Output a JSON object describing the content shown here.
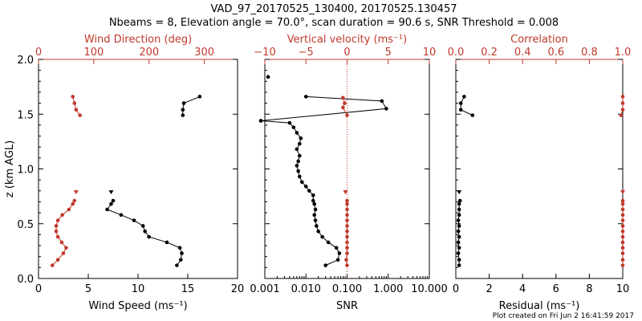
{
  "figure": {
    "title_line1": "VAD_97_20170525_130400, 20170525.130457",
    "title_line2": "Nbeams = 8, Elevation angle = 70.0°, scan duration = 90.6 s, SNR Threshold = 0.008",
    "footer": "Plot created on Fri Jun  2 16:41:59 2017",
    "colors": {
      "primary": "#000000",
      "secondary": "#c0392b"
    }
  },
  "chart_data": [
    {
      "type": "line",
      "panel": "left",
      "xlabel": "Wind Speed (ms⁻¹)",
      "ylabel": "z (km AGL)",
      "xlim": [
        0,
        20
      ],
      "ylim": [
        0,
        2
      ],
      "x_ticks": [
        "0",
        "5",
        "10",
        "15",
        "20"
      ],
      "y_ticks": [
        "0.0",
        "0.5",
        "1.0",
        "1.5",
        "2.0"
      ],
      "top_axis": {
        "label": "Wind Direction (deg)",
        "lim": [
          0,
          360
        ],
        "ticks": [
          "0",
          "100",
          "200",
          "300"
        ]
      },
      "series": [
        {
          "name": "Wind Speed",
          "color": "#000000",
          "axis": "bottom",
          "points": [
            [
              13.9,
              0.12
            ],
            [
              14.3,
              0.17
            ],
            [
              14.4,
              0.23
            ],
            [
              14.2,
              0.28
            ],
            [
              12.9,
              0.33
            ],
            [
              11.1,
              0.38
            ],
            [
              10.7,
              0.43
            ],
            [
              10.5,
              0.48
            ],
            [
              9.6,
              0.53
            ],
            [
              8.3,
              0.58
            ],
            [
              6.9,
              0.63
            ],
            [
              7.3,
              0.68
            ],
            [
              7.5,
              0.71
            ]
          ]
        },
        {
          "name": "Wind Speed",
          "color": "#000000",
          "axis": "bottom",
          "marker": "triangle",
          "points": [
            [
              7.3,
              0.79
            ]
          ]
        },
        {
          "name": "Wind Speed",
          "color": "#000000",
          "axis": "bottom",
          "points": [
            [
              14.5,
              1.49
            ],
            [
              14.5,
              1.54
            ],
            [
              14.6,
              1.6
            ],
            [
              16.2,
              1.66
            ]
          ]
        },
        {
          "name": "Wind Direction",
          "color": "#c0392b",
          "axis": "top",
          "points": [
            [
              25,
              0.12
            ],
            [
              35,
              0.17
            ],
            [
              45,
              0.23
            ],
            [
              50,
              0.28
            ],
            [
              42,
              0.33
            ],
            [
              35,
              0.38
            ],
            [
              32,
              0.43
            ],
            [
              32,
              0.48
            ],
            [
              35,
              0.53
            ],
            [
              43,
              0.58
            ],
            [
              55,
              0.63
            ],
            [
              62,
              0.68
            ],
            [
              65,
              0.71
            ]
          ]
        },
        {
          "name": "Wind Direction",
          "color": "#c0392b",
          "axis": "top",
          "marker": "triangle",
          "points": [
            [
              68,
              0.79
            ]
          ]
        },
        {
          "name": "Wind Direction",
          "color": "#c0392b",
          "axis": "top",
          "points": [
            [
              75,
              1.49
            ],
            [
              68,
              1.54
            ],
            [
              65,
              1.6
            ],
            [
              62,
              1.66
            ]
          ]
        }
      ]
    },
    {
      "type": "line",
      "panel": "middle",
      "xlabel": "SNR",
      "xscale": "log",
      "xlim": [
        0.001,
        10
      ],
      "ylim": [
        0,
        2
      ],
      "x_ticks": [
        "0.001",
        "0.010",
        "0.100",
        "1.000",
        "10.000"
      ],
      "top_axis": {
        "label": "Vertical velocity (ms⁻¹)",
        "lim": [
          -10,
          10
        ],
        "ticks": [
          "−10",
          "−5",
          "0",
          "5",
          "10"
        ]
      },
      "zero_line": {
        "axis": "top",
        "value": 0
      },
      "series": [
        {
          "name": "SNR",
          "color": "#000000",
          "axis": "bottom",
          "points": [
            [
              0.03,
              0.12
            ],
            [
              0.06,
              0.17
            ],
            [
              0.065,
              0.23
            ],
            [
              0.055,
              0.28
            ],
            [
              0.035,
              0.33
            ],
            [
              0.025,
              0.38
            ],
            [
              0.02,
              0.43
            ],
            [
              0.018,
              0.48
            ],
            [
              0.017,
              0.53
            ],
            [
              0.016,
              0.58
            ],
            [
              0.017,
              0.63
            ],
            [
              0.016,
              0.68
            ],
            [
              0.015,
              0.71
            ],
            [
              0.015,
              0.76
            ],
            [
              0.012,
              0.8
            ],
            [
              0.01,
              0.84
            ],
            [
              0.008,
              0.88
            ],
            [
              0.007,
              0.93
            ],
            [
              0.0065,
              0.98
            ],
            [
              0.006,
              1.03
            ],
            [
              0.0065,
              1.07
            ],
            [
              0.007,
              1.12
            ],
            [
              0.006,
              1.18
            ],
            [
              0.007,
              1.23
            ],
            [
              0.0075,
              1.28
            ],
            [
              0.006,
              1.33
            ],
            [
              0.005,
              1.38
            ],
            [
              0.004,
              1.42
            ],
            [
              0.0008,
              1.44
            ],
            [
              0.9,
              1.55
            ],
            [
              0.7,
              1.62
            ],
            [
              0.01,
              1.66
            ]
          ]
        },
        {
          "name": "SNR",
          "color": "#000000",
          "axis": "bottom",
          "points": [
            [
              0.0012,
              1.84
            ]
          ]
        },
        {
          "name": "Vertical velocity",
          "color": "#c0392b",
          "axis": "top",
          "points": [
            [
              0,
              0.12
            ],
            [
              -0.1,
              0.17
            ],
            [
              0,
              0.23
            ],
            [
              0,
              0.28
            ],
            [
              0,
              0.33
            ],
            [
              0,
              0.38
            ],
            [
              0,
              0.43
            ],
            [
              0,
              0.48
            ],
            [
              0,
              0.53
            ],
            [
              0,
              0.58
            ],
            [
              0,
              0.63
            ],
            [
              0,
              0.68
            ],
            [
              0,
              0.71
            ]
          ]
        },
        {
          "name": "Vertical velocity",
          "color": "#c0392b",
          "axis": "top",
          "marker": "triangle",
          "points": [
            [
              -0.2,
              0.79
            ]
          ]
        },
        {
          "name": "Vertical velocity",
          "color": "#c0392b",
          "axis": "top",
          "points": [
            [
              0,
              1.49
            ],
            [
              -0.5,
              1.56
            ],
            [
              -0.3,
              1.6
            ],
            [
              -0.5,
              1.65
            ]
          ]
        }
      ]
    },
    {
      "type": "line",
      "panel": "right",
      "xlabel": "Residual (ms⁻¹)",
      "xlim": [
        0,
        10
      ],
      "ylim": [
        0,
        2
      ],
      "x_ticks": [
        "0",
        "2",
        "4",
        "6",
        "8",
        "10"
      ],
      "top_axis": {
        "label": "Correlation",
        "lim": [
          0,
          1
        ],
        "ticks": [
          "0.0",
          "0.2",
          "0.4",
          "0.6",
          "0.8",
          "1.0"
        ]
      },
      "series": [
        {
          "name": "Residual",
          "color": "#000000",
          "axis": "bottom",
          "points": [
            [
              0.2,
              0.12
            ],
            [
              0.2,
              0.17
            ],
            [
              0.15,
              0.23
            ],
            [
              0.2,
              0.28
            ],
            [
              0.15,
              0.33
            ],
            [
              0.2,
              0.38
            ],
            [
              0.15,
              0.43
            ],
            [
              0.2,
              0.48
            ],
            [
              0.15,
              0.53
            ],
            [
              0.2,
              0.58
            ],
            [
              0.2,
              0.63
            ],
            [
              0.2,
              0.68
            ],
            [
              0.25,
              0.71
            ]
          ]
        },
        {
          "name": "Residual",
          "color": "#000000",
          "axis": "bottom",
          "marker": "triangle",
          "points": [
            [
              0.2,
              0.79
            ]
          ]
        },
        {
          "name": "Residual",
          "color": "#000000",
          "axis": "bottom",
          "points": [
            [
              1.0,
              1.49
            ],
            [
              0.3,
              1.54
            ],
            [
              0.3,
              1.6
            ],
            [
              0.5,
              1.66
            ]
          ]
        },
        {
          "name": "Correlation",
          "color": "#c0392b",
          "axis": "top",
          "points": [
            [
              1.0,
              0.12
            ],
            [
              1.0,
              0.17
            ],
            [
              1.0,
              0.23
            ],
            [
              1.0,
              0.28
            ],
            [
              1.0,
              0.33
            ],
            [
              1.0,
              0.38
            ],
            [
              1.0,
              0.43
            ],
            [
              1.0,
              0.48
            ],
            [
              1.0,
              0.53
            ],
            [
              1.0,
              0.58
            ],
            [
              1.0,
              0.63
            ],
            [
              1.0,
              0.68
            ],
            [
              1.0,
              0.71
            ]
          ]
        },
        {
          "name": "Correlation",
          "color": "#c0392b",
          "axis": "top",
          "marker": "triangle",
          "points": [
            [
              1.0,
              0.79
            ]
          ]
        },
        {
          "name": "Correlation",
          "color": "#c0392b",
          "axis": "top",
          "points": [
            [
              0.99,
              1.49
            ],
            [
              1.0,
              1.54
            ],
            [
              1.0,
              1.6
            ],
            [
              1.0,
              1.66
            ]
          ]
        }
      ]
    }
  ]
}
